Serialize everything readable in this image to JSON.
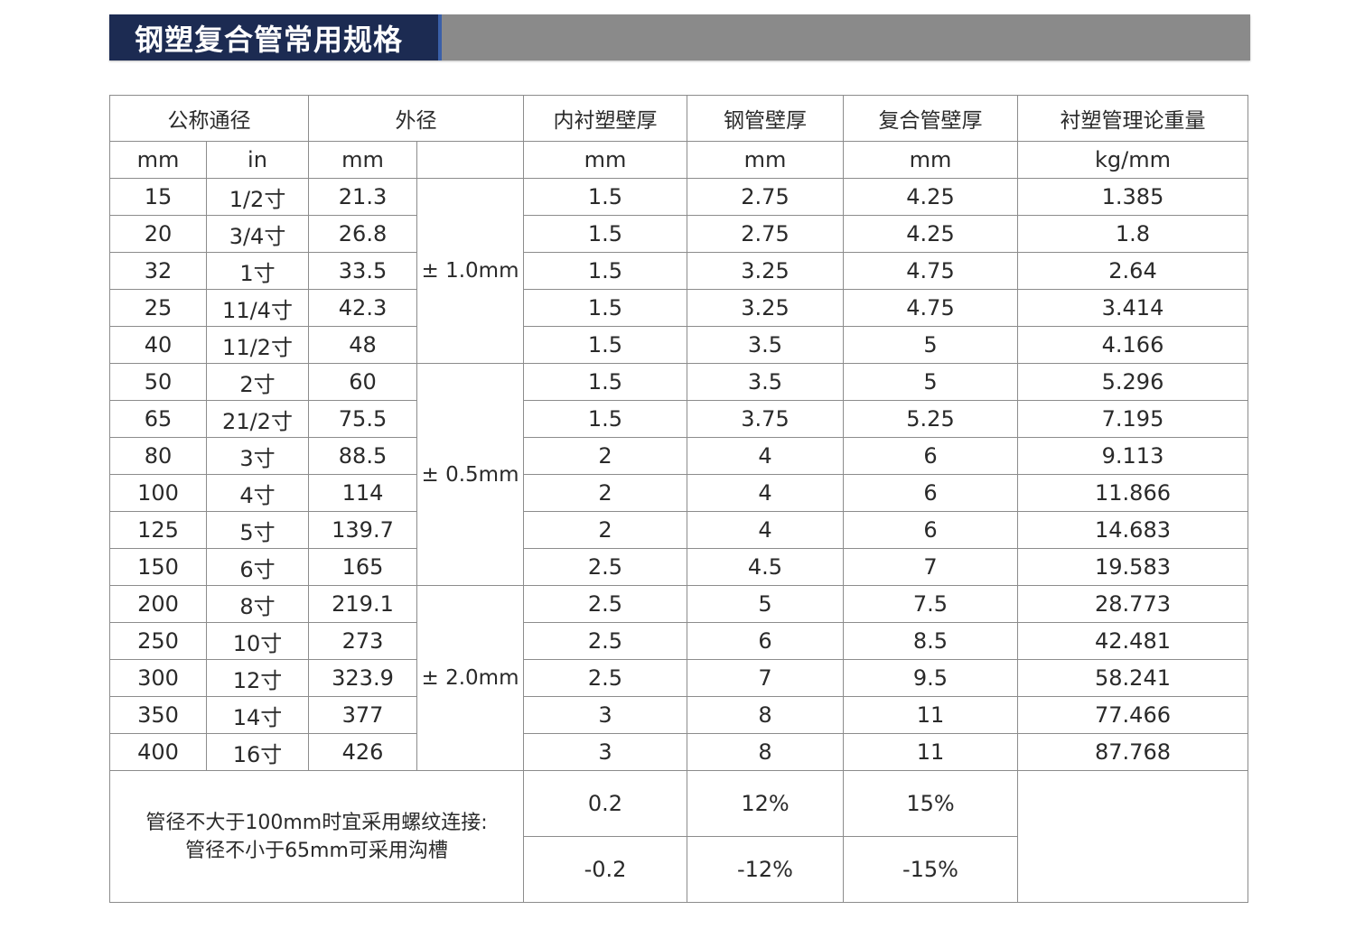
{
  "title": "钢塑复合管常用规格",
  "headers": {
    "nominal": "公称通径",
    "outer": "外径",
    "lining": "内衬塑壁厚",
    "steel": "钢管壁厚",
    "composite": "复合管壁厚",
    "weight": "衬塑管理论重量"
  },
  "units": {
    "nominal_mm": "mm",
    "nominal_in": "in",
    "outer_mm": "mm",
    "lining": "mm",
    "steel": "mm",
    "composite": "mm",
    "weight": "kg/mm"
  },
  "tolerances": [
    "± 1.0mm",
    "± 0.5mm",
    "± 2.0mm"
  ],
  "rows": [
    [
      "15",
      "1/2寸",
      "21.3",
      "1.5",
      "2.75",
      "4.25",
      "1.385"
    ],
    [
      "20",
      "3/4寸",
      "26.8",
      "1.5",
      "2.75",
      "4.25",
      "1.8"
    ],
    [
      "32",
      "1寸",
      "33.5",
      "1.5",
      "3.25",
      "4.75",
      "2.64"
    ],
    [
      "25",
      "11/4寸",
      "42.3",
      "1.5",
      "3.25",
      "4.75",
      "3.414"
    ],
    [
      "40",
      "11/2寸",
      "48",
      "1.5",
      "3.5",
      "5",
      "4.166"
    ],
    [
      "50",
      "2寸",
      "60",
      "1.5",
      "3.5",
      "5",
      "5.296"
    ],
    [
      "65",
      "21/2寸",
      "75.5",
      "1.5",
      "3.75",
      "5.25",
      "7.195"
    ],
    [
      "80",
      "3寸",
      "88.5",
      "2",
      "4",
      "6",
      "9.113"
    ],
    [
      "100",
      "4寸",
      "114",
      "2",
      "4",
      "6",
      "11.866"
    ],
    [
      "125",
      "5寸",
      "139.7",
      "2",
      "4",
      "6",
      "14.683"
    ],
    [
      "150",
      "6寸",
      "165",
      "2.5",
      "4.5",
      "7",
      "19.583"
    ],
    [
      "200",
      "8寸",
      "219.1",
      "2.5",
      "5",
      "7.5",
      "28.773"
    ],
    [
      "250",
      "10寸",
      "273",
      "2.5",
      "6",
      "8.5",
      "42.481"
    ],
    [
      "300",
      "12寸",
      "323.9",
      "2.5",
      "7",
      "9.5",
      "58.241"
    ],
    [
      "350",
      "14寸",
      "377",
      "3",
      "8",
      "11",
      "77.466"
    ],
    [
      "400",
      "16寸",
      "426",
      "3",
      "8",
      "11",
      "87.768"
    ]
  ],
  "footer": {
    "note_line1": "管径不大于100mm时宜采用螺纹连接:",
    "note_line2": "管径不小于65mm可采用沟槽",
    "plus": [
      "0.2",
      "12%",
      "15%"
    ],
    "minus": [
      "-0.2",
      "-12%",
      "-15%"
    ]
  }
}
